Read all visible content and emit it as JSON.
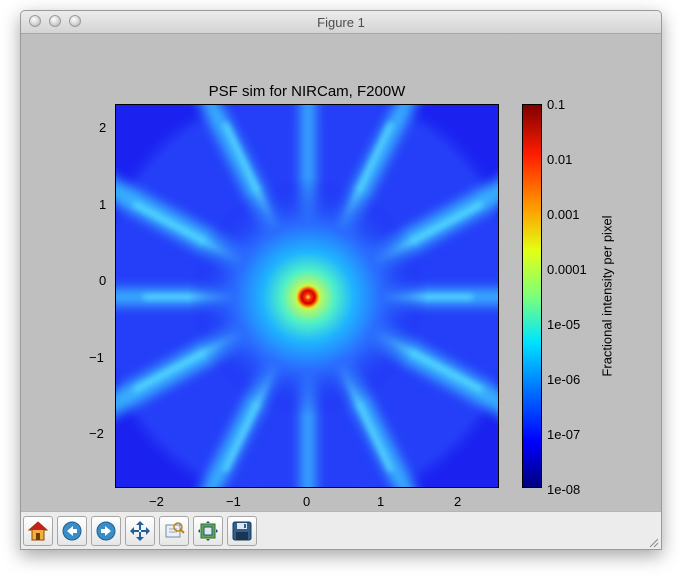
{
  "window": {
    "title": "Figure 1"
  },
  "plot": {
    "title": "PSF sim for NIRCam, F200W",
    "x_ticks": [
      "−2",
      "−1",
      "0",
      "1",
      "2"
    ],
    "y_ticks": [
      "2",
      "1",
      "0",
      "−1",
      "−2"
    ],
    "colorbar_ticks": [
      "0.1",
      "0.01",
      "0.001",
      "0.0001",
      "1e-05",
      "1e-06",
      "1e-07",
      "1e-08"
    ],
    "colorbar_label": "Fractional intensity per pixel",
    "colormap": "jet"
  },
  "toolbar": {
    "buttons": [
      {
        "name": "home-button",
        "icon": "home-icon"
      },
      {
        "name": "back-button",
        "icon": "back-arrow-icon"
      },
      {
        "name": "forward-button",
        "icon": "forward-arrow-icon"
      },
      {
        "name": "pan-button",
        "icon": "move-arrows-icon"
      },
      {
        "name": "zoom-button",
        "icon": "zoom-rectangle-icon"
      },
      {
        "name": "configure-subplots-button",
        "icon": "subplots-icon"
      },
      {
        "name": "save-button",
        "icon": "floppy-disk-icon"
      }
    ]
  },
  "colors": {
    "window_bg": "#bfbfbf",
    "toolbar_bg": "#ececec",
    "psf_background": "#1b22f0",
    "psf_core": "#cc0000"
  }
}
